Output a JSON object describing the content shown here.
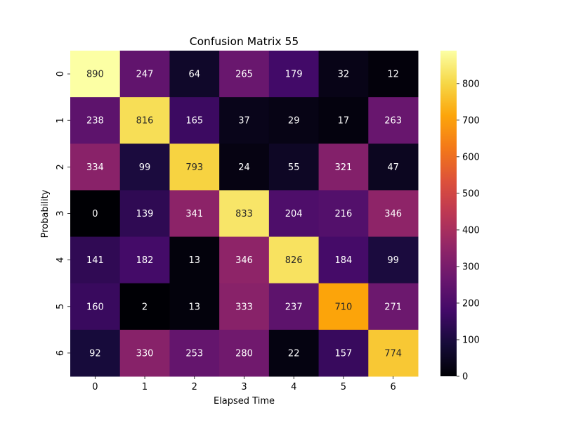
{
  "chart_data": {
    "type": "heatmap",
    "title": "Confusion Matrix 55",
    "xlabel": "Elapsed Time",
    "ylabel": "Probability",
    "x_categories": [
      "0",
      "1",
      "2",
      "3",
      "4",
      "5",
      "6"
    ],
    "y_categories": [
      "0",
      "1",
      "2",
      "3",
      "4",
      "5",
      "6"
    ],
    "values": [
      [
        890,
        247,
        64,
        265,
        179,
        32,
        12
      ],
      [
        238,
        816,
        165,
        37,
        29,
        17,
        263
      ],
      [
        334,
        99,
        793,
        24,
        55,
        321,
        47
      ],
      [
        0,
        139,
        341,
        833,
        204,
        216,
        346
      ],
      [
        141,
        182,
        13,
        346,
        826,
        184,
        99
      ],
      [
        160,
        2,
        13,
        333,
        237,
        710,
        271
      ],
      [
        92,
        330,
        253,
        280,
        22,
        157,
        774
      ]
    ],
    "colormap": "inferno",
    "vmin": 0,
    "vmax": 890,
    "colorbar_ticks": [
      "0",
      "100",
      "200",
      "300",
      "400",
      "500",
      "600",
      "700",
      "800"
    ],
    "annotate": true,
    "legend": "colorbar-right"
  }
}
